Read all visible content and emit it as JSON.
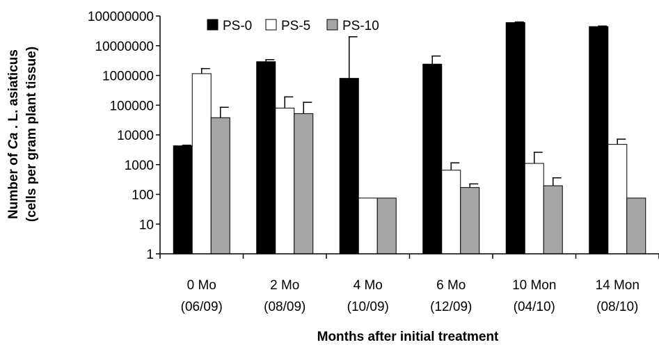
{
  "chart_data": {
    "type": "bar",
    "yscale": "log",
    "ylim": [
      1,
      100000000
    ],
    "ylabel_line1_prefix": "Number of ",
    "ylabel_line1_italic": "Ca",
    "ylabel_line1_suffix": " . L. asiaticus",
    "ylabel_line2": "(cells per gram plant tissue)",
    "xlabel": "Months after initial treatment",
    "y_ticks": [
      "1",
      "10",
      "100",
      "1000",
      "10000",
      "100000",
      "1000000",
      "10000000",
      "100000000"
    ],
    "categories": [
      {
        "line1": "0 Mo",
        "line2": "(06/09)"
      },
      {
        "line1": "2 Mo",
        "line2": "(08/09)"
      },
      {
        "line1": "4 Mo",
        "line2": "(10/09)"
      },
      {
        "line1": "6 Mo",
        "line2": "(12/09)"
      },
      {
        "line1": "10 Mon",
        "line2": "(04/10)"
      },
      {
        "line1": "14 Mon",
        "line2": "(08/10)"
      }
    ],
    "series": [
      {
        "name": "PS-0",
        "color": "#000000",
        "values": [
          4300,
          2900000,
          800000,
          2400000,
          60000000,
          44000000
        ],
        "error_upper": [
          4500,
          3400000,
          20000000,
          4500000,
          63000000,
          46000000
        ]
      },
      {
        "name": "PS-5",
        "color": "#ffffff",
        "values": [
          1150000,
          80000,
          75,
          650,
          1100,
          4800
        ],
        "error_upper": [
          1700000,
          190000,
          null,
          1150,
          2600,
          7200
        ]
      },
      {
        "name": "PS-10",
        "color": "#a6a6a6",
        "values": [
          38000,
          52000,
          75,
          170,
          195,
          75
        ],
        "error_upper": [
          85000,
          125000,
          null,
          225,
          360,
          null
        ]
      }
    ],
    "legend_position": "top-center",
    "grid": false
  }
}
